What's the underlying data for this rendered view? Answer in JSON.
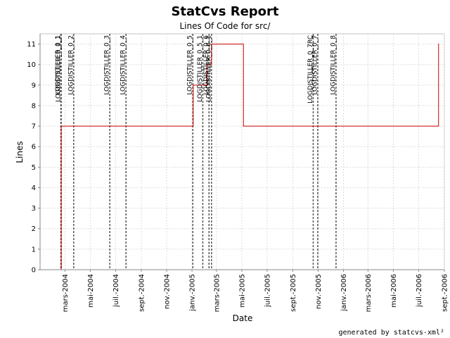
{
  "chart_data": {
    "type": "line",
    "title": "StatCvs Report",
    "subtitle": "Lines Of Code for src/",
    "xlabel": "Date",
    "ylabel": "Lines",
    "xlim": [
      "2004-01-01",
      "2006-09-01"
    ],
    "ylim": [
      0,
      11.5
    ],
    "grid": true,
    "y_ticks": [
      0,
      1,
      2,
      3,
      4,
      5,
      6,
      7,
      8,
      9,
      10,
      11
    ],
    "x_ticks": [
      {
        "date": "2004-03-01",
        "label": "mars-2004"
      },
      {
        "date": "2004-05-01",
        "label": "mai-2004"
      },
      {
        "date": "2004-07-01",
        "label": "juil.-2004"
      },
      {
        "date": "2004-09-01",
        "label": "sept.-2004"
      },
      {
        "date": "2004-11-01",
        "label": "nov.-2004"
      },
      {
        "date": "2005-01-01",
        "label": "janv.-2005"
      },
      {
        "date": "2005-03-01",
        "label": "mars-2005"
      },
      {
        "date": "2005-05-01",
        "label": "mai-2005"
      },
      {
        "date": "2005-07-01",
        "label": "juil.-2005"
      },
      {
        "date": "2005-09-01",
        "label": "sept.-2005"
      },
      {
        "date": "2005-11-01",
        "label": "nov.-2005"
      },
      {
        "date": "2006-01-01",
        "label": "janv.-2006"
      },
      {
        "date": "2006-03-01",
        "label": "mars-2006"
      },
      {
        "date": "2006-05-01",
        "label": "mai-2006"
      },
      {
        "date": "2006-07-01",
        "label": "juil.-2006"
      },
      {
        "date": "2006-09-01",
        "label": "sept.-2006"
      }
    ],
    "series": [
      {
        "color": "#cc0000",
        "step": true,
        "points": [
          {
            "date": "2004-02-20",
            "y": 0
          },
          {
            "date": "2004-02-21",
            "y": 7
          },
          {
            "date": "2005-01-03",
            "y": 7
          },
          {
            "date": "2005-01-04",
            "y": 9
          },
          {
            "date": "2005-02-06",
            "y": 10
          },
          {
            "date": "2005-02-17",
            "y": 11
          },
          {
            "date": "2005-05-05",
            "y": 7
          },
          {
            "date": "2006-08-17",
            "y": 7
          },
          {
            "date": "2006-08-18",
            "y": 11
          }
        ]
      }
    ],
    "markers": [
      {
        "date": "2004-02-20",
        "label": "LOGDISTILLER_0_1"
      },
      {
        "date": "2004-02-21",
        "label": "LOGDISTILLER_0_1_1"
      },
      {
        "date": "2004-03-22",
        "label": "LOGDISTILLER_0_2"
      },
      {
        "date": "2004-06-17",
        "label": "LOGDISTILLER_0_3"
      },
      {
        "date": "2004-07-26",
        "label": "LOGDISTILLER_0_4"
      },
      {
        "date": "2005-01-03",
        "label": "LOGDISTILLER_0_5"
      },
      {
        "date": "2005-01-27",
        "label": "LOGDISTILLER_0_5_1"
      },
      {
        "date": "2005-02-11",
        "label": "LOGDISTILLER_0_6"
      },
      {
        "date": "2005-02-17",
        "label": "LOGDISTILLER_0_6_1"
      },
      {
        "date": "2005-10-20",
        "label": "LOGDISTILLER_0_7RC"
      },
      {
        "date": "2005-10-31",
        "label": "LOGDISTILLER_0_7"
      },
      {
        "date": "2005-12-14",
        "label": "LOGDISTILLER_0_8"
      }
    ],
    "marker_color": "#555555"
  },
  "footer": "generated by statcvs-xml²"
}
